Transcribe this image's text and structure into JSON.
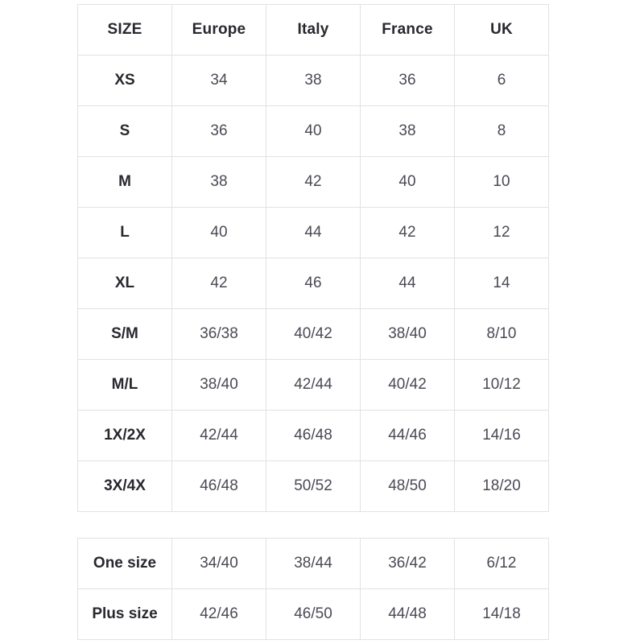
{
  "colors": {
    "background": "#ffffff",
    "border": "#e2e2e4",
    "header_text": "#28282f",
    "cell_text": "#4a4a55"
  },
  "table1": {
    "headers": [
      "SIZE",
      "Europe",
      "Italy",
      "France",
      "UK"
    ],
    "rows": [
      {
        "label": "XS",
        "values": [
          "34",
          "38",
          "36",
          "6"
        ]
      },
      {
        "label": "S",
        "values": [
          "36",
          "40",
          "38",
          "8"
        ]
      },
      {
        "label": "M",
        "values": [
          "38",
          "42",
          "40",
          "10"
        ]
      },
      {
        "label": "L",
        "values": [
          "40",
          "44",
          "42",
          "12"
        ]
      },
      {
        "label": "XL",
        "values": [
          "42",
          "46",
          "44",
          "14"
        ]
      },
      {
        "label": "S/M",
        "values": [
          "36/38",
          "40/42",
          "38/40",
          "8/10"
        ]
      },
      {
        "label": "M/L",
        "values": [
          "38/40",
          "42/44",
          "40/42",
          "10/12"
        ]
      },
      {
        "label": "1X/2X",
        "values": [
          "42/44",
          "46/48",
          "44/46",
          "14/16"
        ]
      },
      {
        "label": "3X/4X",
        "values": [
          "46/48",
          "50/52",
          "48/50",
          "18/20"
        ]
      }
    ]
  },
  "table2": {
    "rows": [
      {
        "label": "One size",
        "values": [
          "34/40",
          "38/44",
          "36/42",
          "6/12"
        ]
      },
      {
        "label": "Plus size",
        "values": [
          "42/46",
          "46/50",
          "44/48",
          "14/18"
        ]
      }
    ]
  }
}
